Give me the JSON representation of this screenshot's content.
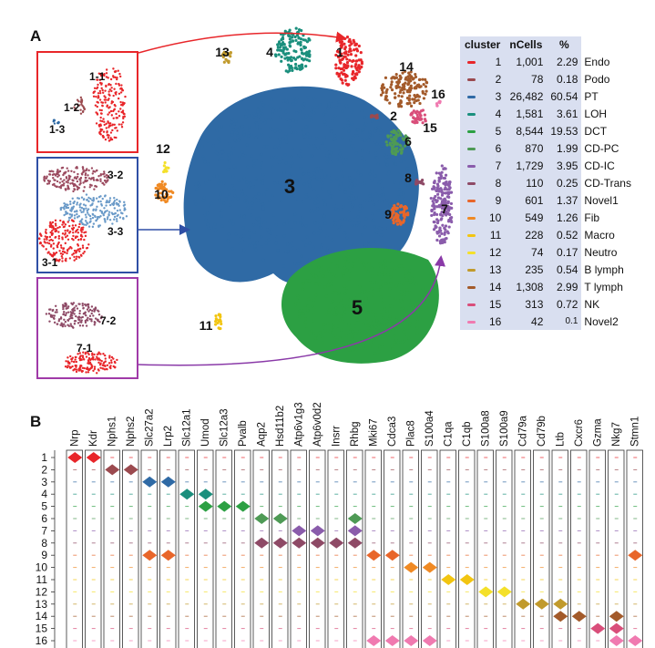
{
  "panel_a_letter": "A",
  "panel_b_letter": "B",
  "cluster_table": {
    "headers": [
      "cluster",
      "nCells",
      "%"
    ],
    "rows": [
      {
        "cluster": "1",
        "nCells": "1,001",
        "pct": "2.29",
        "name": "Endo",
        "color": "#e8262a"
      },
      {
        "cluster": "2",
        "nCells": "78",
        "pct": "0.18",
        "name": "Podo",
        "color": "#9b4a4f"
      },
      {
        "cluster": "3",
        "nCells": "26,482",
        "pct": "60.54",
        "name": "PT",
        "color": "#2f6aa5"
      },
      {
        "cluster": "4",
        "nCells": "1,581",
        "pct": "3.61",
        "name": "LOH",
        "color": "#1b8f7d"
      },
      {
        "cluster": "5",
        "nCells": "8,544",
        "pct": "19.53",
        "name": "DCT",
        "color": "#2ca043"
      },
      {
        "cluster": "6",
        "nCells": "870",
        "pct": "1.99",
        "name": "CD-PC",
        "color": "#4e9a55"
      },
      {
        "cluster": "7",
        "nCells": "1,729",
        "pct": "3.95",
        "name": "CD-IC",
        "color": "#8a5cab"
      },
      {
        "cluster": "8",
        "nCells": "110",
        "pct": "0.25",
        "name": "CD-Trans",
        "color": "#8e4a66"
      },
      {
        "cluster": "9",
        "nCells": "601",
        "pct": "1.37",
        "name": "Novel1",
        "color": "#e8662a"
      },
      {
        "cluster": "10",
        "nCells": "549",
        "pct": "1.26",
        "name": "Fib",
        "color": "#f08a24"
      },
      {
        "cluster": "11",
        "nCells": "228",
        "pct": "0.52",
        "name": "Macro",
        "color": "#f2c511"
      },
      {
        "cluster": "12",
        "nCells": "74",
        "pct": "0.17",
        "name": "Neutro",
        "color": "#f4e02a"
      },
      {
        "cluster": "13",
        "nCells": "235",
        "pct": "0.54",
        "name": "B lymph",
        "color": "#c19a2c"
      },
      {
        "cluster": "14",
        "nCells": "1,308",
        "pct": "2.99",
        "name": "T lymph",
        "color": "#a35a2a"
      },
      {
        "cluster": "15",
        "nCells": "313",
        "pct": "0.72",
        "name": "NK",
        "color": "#d94e7a"
      },
      {
        "cluster": "16",
        "nCells": "42",
        "pct": "0.1",
        "name": "Novel2",
        "color": "#f07ab0"
      }
    ]
  },
  "tsne_labels": {
    "main": [
      "1",
      "2",
      "3",
      "4",
      "5",
      "6",
      "7",
      "8",
      "9",
      "10",
      "11",
      "12",
      "13",
      "14",
      "15",
      "16"
    ],
    "inset_top": [
      "1-1",
      "1-2",
      "1-3"
    ],
    "inset_mid": [
      "3-2",
      "3-3",
      "3-1"
    ],
    "inset_bot": [
      "7-2",
      "7-1"
    ]
  },
  "chart_data": {
    "type": "violin",
    "genes": [
      "Nrp",
      "Kdr",
      "Nphs1",
      "Nphs2",
      "Slc27a2",
      "Lrp2",
      "Slc12a1",
      "Umod",
      "Slc12a3",
      "Pvalb",
      "Aqp2",
      "Hsd11b2",
      "Atp6v1g3",
      "Atp6v0d2",
      "Insrr",
      "Rhbg",
      "Mki67",
      "Cdca3",
      "Plac8",
      "S100a4",
      "C1qa",
      "C1qb",
      "S100a8",
      "S100a9",
      "Cd79a",
      "Cd79b",
      "Ltb",
      "Cxcr6",
      "Gzma",
      "Nkg7",
      "Stmn1"
    ],
    "clusters": [
      "1",
      "2",
      "3",
      "4",
      "5",
      "6",
      "7",
      "8",
      "9",
      "10",
      "11",
      "12",
      "13",
      "14",
      "15",
      "16"
    ],
    "high_expression": [
      [
        1,
        0
      ],
      [
        1,
        1
      ],
      [
        2,
        2
      ],
      [
        2,
        3
      ],
      [
        3,
        4
      ],
      [
        3,
        5
      ],
      [
        4,
        6
      ],
      [
        4,
        7
      ],
      [
        5,
        7
      ],
      [
        5,
        8
      ],
      [
        5,
        9
      ],
      [
        6,
        10
      ],
      [
        6,
        11
      ],
      [
        6,
        15
      ],
      [
        7,
        12
      ],
      [
        7,
        13
      ],
      [
        7,
        15
      ],
      [
        8,
        10
      ],
      [
        8,
        11
      ],
      [
        8,
        12
      ],
      [
        8,
        13
      ],
      [
        8,
        14
      ],
      [
        8,
        15
      ],
      [
        9,
        4
      ],
      [
        9,
        5
      ],
      [
        9,
        16
      ],
      [
        9,
        17
      ],
      [
        9,
        30
      ],
      [
        10,
        18
      ],
      [
        10,
        19
      ],
      [
        11,
        20
      ],
      [
        11,
        21
      ],
      [
        12,
        22
      ],
      [
        12,
        23
      ],
      [
        13,
        24
      ],
      [
        13,
        25
      ],
      [
        13,
        26
      ],
      [
        14,
        26
      ],
      [
        14,
        27
      ],
      [
        14,
        29
      ],
      [
        15,
        28
      ],
      [
        15,
        29
      ],
      [
        16,
        16
      ],
      [
        16,
        17
      ],
      [
        16,
        18
      ],
      [
        16,
        19
      ],
      [
        16,
        29
      ],
      [
        16,
        30
      ]
    ]
  }
}
